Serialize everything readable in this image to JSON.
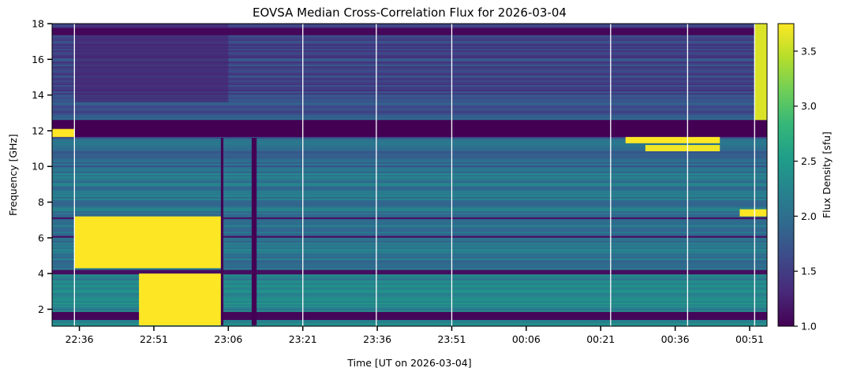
{
  "chart_data": {
    "type": "heatmap",
    "title": "EOVSA Median Cross-Correlation Flux for 2026-03-04",
    "xlabel": "Time [UT on 2026-03-04]",
    "ylabel": "Frequency [GHz]",
    "colorbar_label": "Flux Density [sfu]",
    "colormap": "viridis",
    "x_ticks": [
      "22:36",
      "22:51",
      "23:06",
      "23:21",
      "23:36",
      "23:51",
      "00:06",
      "00:21",
      "00:36",
      "00:51"
    ],
    "x_tick_minutes": [
      0,
      15,
      30,
      45,
      60,
      75,
      90,
      105,
      120,
      135
    ],
    "xlim_minutes": [
      -5.5,
      138.5
    ],
    "y_ticks": [
      2,
      4,
      6,
      8,
      10,
      12,
      14,
      16,
      18
    ],
    "ylim": [
      1.05,
      18.0
    ],
    "colorbar_ticks": [
      1.0,
      1.5,
      2.0,
      2.5,
      3.0,
      3.5
    ],
    "colorbar_range": [
      1.0,
      3.75
    ],
    "gap_lines_minutes": [
      -1.0,
      45.0,
      59.8,
      75.0,
      107.0,
      122.5,
      136.0
    ],
    "regions": [
      {
        "t": [
          -5.5,
          138.5
        ],
        "f": [
          11.65,
          12.6
        ],
        "value": 1.0
      },
      {
        "t": [
          -5.5,
          -1.0
        ],
        "f": [
          11.65,
          12.1
        ],
        "value": 3.75
      },
      {
        "t": [
          -5.5,
          138.5
        ],
        "f": [
          17.35,
          17.75
        ],
        "value": 1.05
      },
      {
        "t": [
          -5.5,
          138.5
        ],
        "f": [
          1.4,
          1.85
        ],
        "value": 1.05
      },
      {
        "t": [
          -5.5,
          138.5
        ],
        "f": [
          3.95,
          4.2
        ],
        "value": 1.1
      },
      {
        "t": [
          -5.5,
          138.5
        ],
        "f": [
          6.0,
          6.12
        ],
        "value": 1.2
      },
      {
        "t": [
          -5.5,
          138.5
        ],
        "f": [
          7.05,
          7.15
        ],
        "value": 1.15
      },
      {
        "t": [
          -1.0,
          28.5
        ],
        "f": [
          4.3,
          7.2
        ],
        "value": 3.75
      },
      {
        "t": [
          12.0,
          28.5
        ],
        "f": [
          1.1,
          4.0
        ],
        "value": 3.75
      },
      {
        "t": [
          110.0,
          129.0
        ],
        "f": [
          11.3,
          11.65
        ],
        "value": 3.75
      },
      {
        "t": [
          114.0,
          129.0
        ],
        "f": [
          10.85,
          11.2
        ],
        "value": 3.7
      },
      {
        "t": [
          133.0,
          138.5
        ],
        "f": [
          7.2,
          7.6
        ],
        "value": 3.75
      },
      {
        "t": [
          136.0,
          138.5
        ],
        "f": [
          12.6,
          18.0
        ],
        "value": 3.6
      },
      {
        "t": [
          28.5,
          29.0
        ],
        "f": [
          1.1,
          11.6
        ],
        "value": 1.0
      },
      {
        "t": [
          34.7,
          35.7
        ],
        "f": [
          1.1,
          11.6
        ],
        "value": 1.0
      }
    ]
  }
}
